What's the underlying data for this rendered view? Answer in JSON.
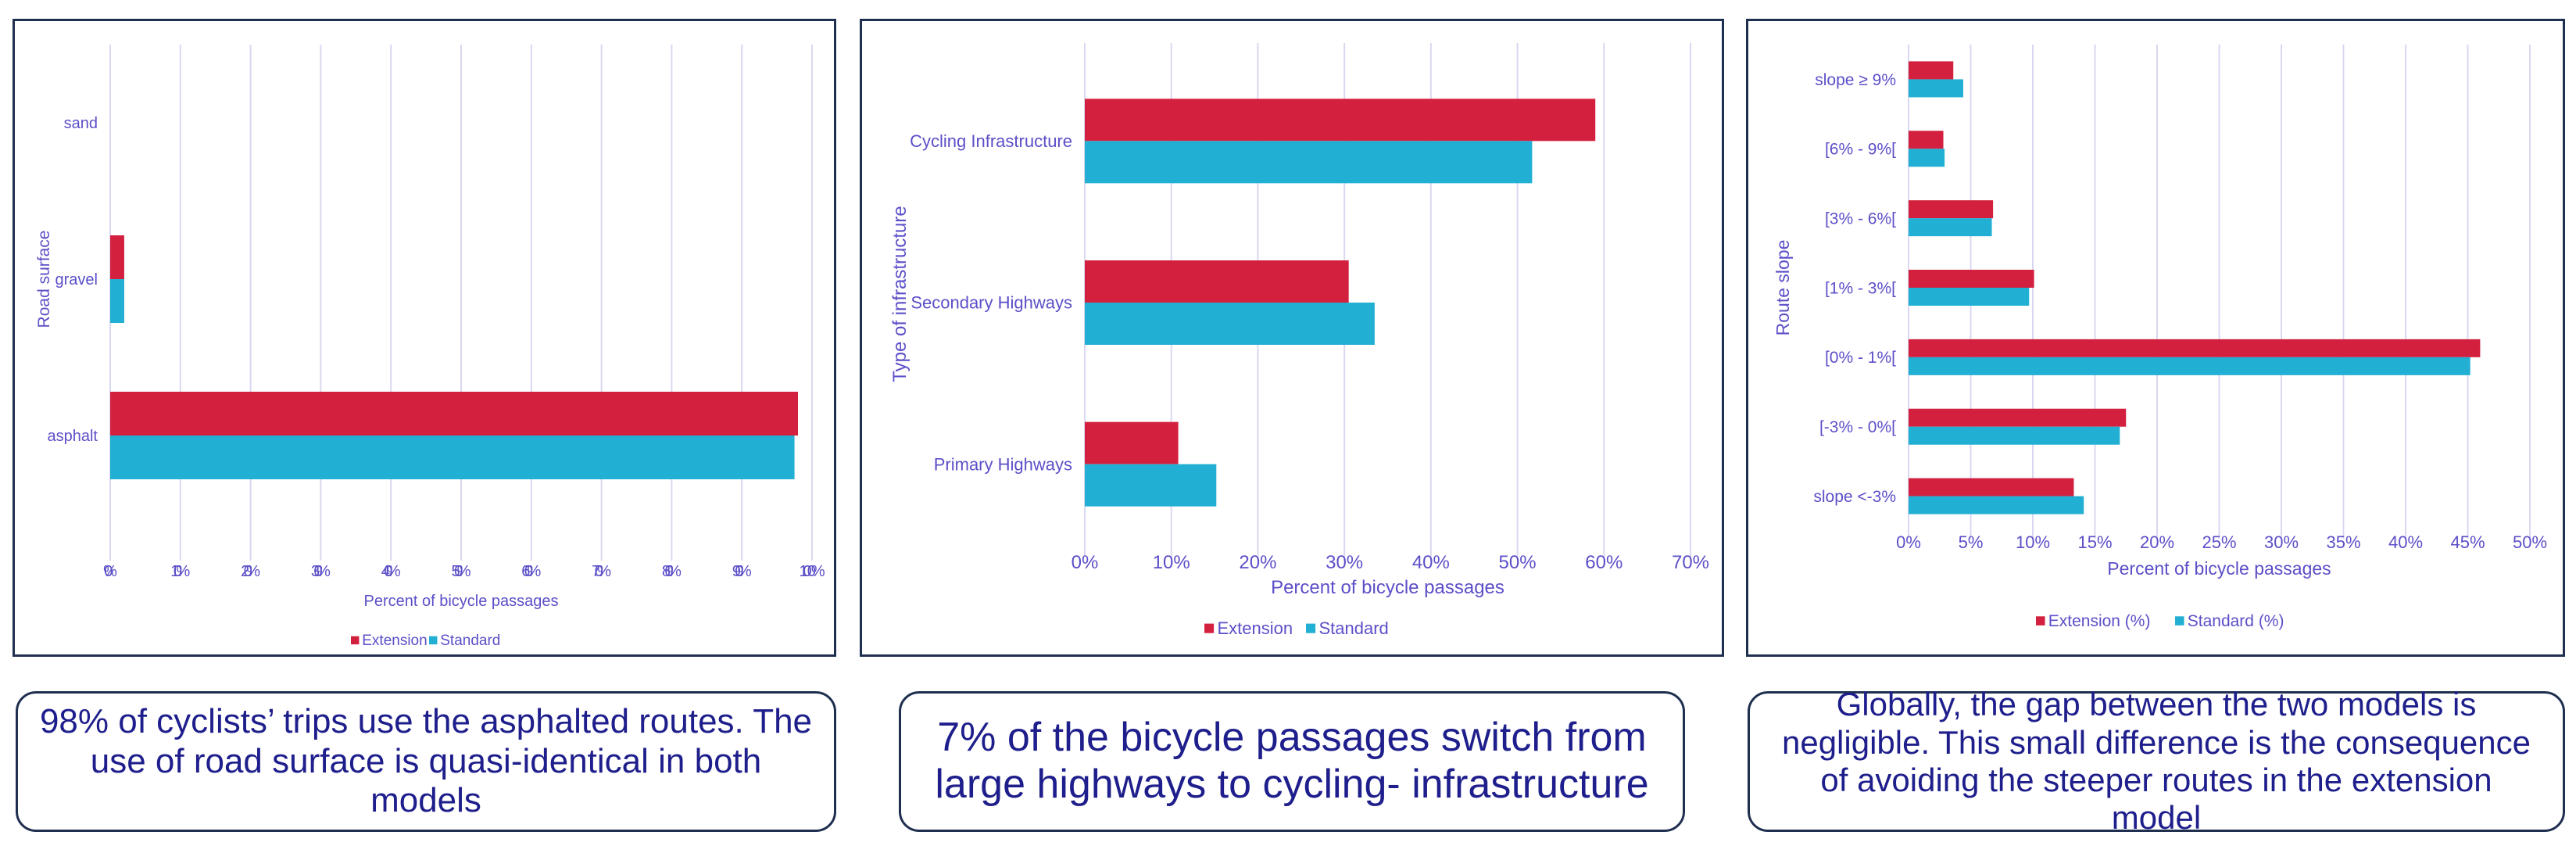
{
  "colors": {
    "extension": "#d3203e",
    "standard": "#21afd3",
    "text": "#5b4fc8",
    "grid": "#d9d8f0",
    "axis": "#c8c8e0"
  },
  "chart_data": [
    {
      "type": "bar",
      "orientation": "horizontal",
      "categories": [
        "sand",
        "gravel",
        "asphalt"
      ],
      "series": [
        {
          "name": "Extension",
          "values": [
            0,
            2,
            98
          ]
        },
        {
          "name": "Standard",
          "values": [
            0,
            2,
            97.5
          ]
        }
      ],
      "xlabel": "Percent of bicycle passages",
      "ylabel": "Road surface",
      "xlim": [
        0,
        100
      ],
      "ticks": [
        "0%",
        "10%",
        "20%",
        "30%",
        "40%",
        "50%",
        "60%",
        "70%",
        "80%",
        "90%",
        "100%"
      ],
      "legend": [
        "Extension",
        "Standard"
      ],
      "legend_position": "bottom",
      "grid": true
    },
    {
      "type": "bar",
      "orientation": "horizontal",
      "categories": [
        "Cycling Infrastructure",
        "Secondary Highways",
        "Primary Highways"
      ],
      "series": [
        {
          "name": "Extension",
          "values": [
            59,
            30.5,
            10.8
          ]
        },
        {
          "name": "Standard",
          "values": [
            51.7,
            33.5,
            15.2
          ]
        }
      ],
      "xlabel": "Percent of bicycle passages",
      "ylabel": "Type of infrastructure",
      "xlim": [
        0,
        70
      ],
      "ticks": [
        "0%",
        "10%",
        "20%",
        "30%",
        "40%",
        "50%",
        "60%",
        "70%"
      ],
      "legend": [
        "Extension",
        "Standard"
      ],
      "legend_position": "bottom",
      "grid": true
    },
    {
      "type": "bar",
      "orientation": "horizontal",
      "categories": [
        "slope ≥ 9%",
        "[6% - 9%[",
        "[3% - 6%[",
        "[1% - 3%[",
        "[0% - 1%[",
        "[-3% - 0%[",
        "slope <-3%"
      ],
      "series": [
        {
          "name": "Extension (%)",
          "values": [
            3.6,
            2.8,
            6.8,
            10.1,
            46.0,
            17.5,
            13.3
          ]
        },
        {
          "name": "Standard (%)",
          "values": [
            4.4,
            2.9,
            6.7,
            9.7,
            45.2,
            17.0,
            14.1
          ]
        }
      ],
      "xlabel": "Percent of bicycle passages",
      "ylabel": "Route slope",
      "xlim": [
        0,
        50
      ],
      "ticks": [
        "0%",
        "5%",
        "10%",
        "15%",
        "20%",
        "25%",
        "30%",
        "35%",
        "40%",
        "45%",
        "50%"
      ],
      "legend": [
        "Extension (%)",
        "Standard (%)"
      ],
      "legend_position": "bottom",
      "grid": true
    }
  ],
  "captions": [
    "98% of cyclists’ trips use the asphalted routes. The use of road surface is quasi-identical in both models",
    "7% of the bicycle passages switch from large highways to cycling- infrastructure",
    "Globally, the gap between the two models is negligible. This small difference is the consequence of avoiding the steeper routes in the extension model"
  ]
}
